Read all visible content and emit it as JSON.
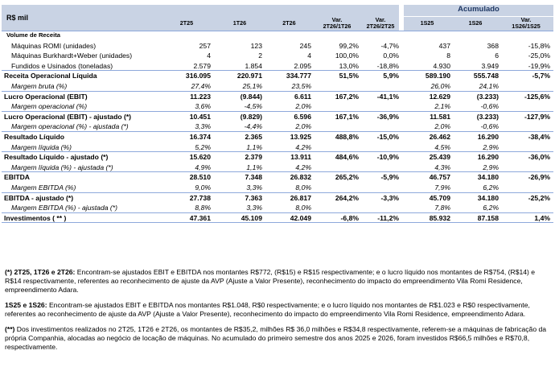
{
  "header": {
    "label": "R$ mil",
    "accumulated": "Acumulado",
    "cols": [
      "2T25",
      "1T26",
      "2T26",
      "Var.\n2T26/1T26",
      "Var.\n2T26/2T25",
      "1S25",
      "1S26",
      "Var.\n1S26/1S25"
    ]
  },
  "rows": [
    {
      "label": "Volume de Receita",
      "style": "head",
      "values": [
        "",
        "",
        "",
        "",
        "",
        "",
        "",
        ""
      ]
    },
    {
      "label": "Máquinas ROMI (unidades)",
      "style": "sub",
      "values": [
        "257",
        "123",
        "245",
        "99,2%",
        "-4,7%",
        "437",
        "368",
        "-15,8%"
      ]
    },
    {
      "label": "Máquinas Burkhardt+Weber (unidades)",
      "style": "sub",
      "values": [
        "4",
        "2",
        "4",
        "100,0%",
        "0,0%",
        "8",
        "6",
        "-25,0%"
      ]
    },
    {
      "label": "Fundidos e Usinados (toneladas)",
      "style": "sub sep",
      "values": [
        "2.579",
        "1.854",
        "2.095",
        "13,0%",
        "-18,8%",
        "4.930",
        "3.949",
        "-19,9%"
      ]
    },
    {
      "label": "Receita Operacional Líquida",
      "style": "bold",
      "values": [
        "316.095",
        "220.971",
        "334.777",
        "51,5%",
        "5,9%",
        "589.190",
        "555.748",
        "-5,7%"
      ]
    },
    {
      "label": "Margem bruta (%)",
      "style": "sub ital sep",
      "values": [
        "27,4%",
        "25,1%",
        "23,5%",
        "",
        "",
        "26,0%",
        "24,1%",
        ""
      ]
    },
    {
      "label": "Lucro Operacional (EBIT)",
      "style": "bold",
      "values": [
        "11.223",
        "(9.844)",
        "6.611",
        "167,2%",
        "-41,1%",
        "12.629",
        "(3.233)",
        "-125,6%"
      ]
    },
    {
      "label": "Margem operacional  (%)",
      "style": "sub ital sep",
      "values": [
        "3,6%",
        "-4,5%",
        "2,0%",
        "",
        "",
        "2,1%",
        "-0,6%",
        ""
      ]
    },
    {
      "label": "Lucro Operacional (EBIT) - ajustado (*)",
      "style": "bold",
      "values": [
        "10.451",
        "(9.829)",
        "6.596",
        "167,1%",
        "-36,9%",
        "11.581",
        "(3.233)",
        "-127,9%"
      ]
    },
    {
      "label": "Margem operacional  (%) - ajustada (*)",
      "style": "sub ital sep",
      "values": [
        "3,3%",
        "-4,4%",
        "2,0%",
        "",
        "",
        "2,0%",
        "-0,6%",
        ""
      ]
    },
    {
      "label": "Resultado Líquido",
      "style": "bold",
      "values": [
        "16.374",
        "2.365",
        "13.925",
        "488,8%",
        "-15,0%",
        "26.462",
        "16.290",
        "-38,4%"
      ]
    },
    {
      "label": "Margem líquida (%)",
      "style": "sub ital sep",
      "values": [
        "5,2%",
        "1,1%",
        "4,2%",
        "",
        "",
        "4,5%",
        "2,9%",
        ""
      ]
    },
    {
      "label": "Resultado Líquido - ajustado (*)",
      "style": "bold",
      "values": [
        "15.620",
        "2.379",
        "13.911",
        "484,6%",
        "-10,9%",
        "25.439",
        "16.290",
        "-36,0%"
      ]
    },
    {
      "label": "Margem líquida (%) - ajustada (*)",
      "style": "sub ital sep",
      "values": [
        "4,9%",
        "1,1%",
        "4,2%",
        "",
        "",
        "4,3%",
        "2,9%",
        ""
      ]
    },
    {
      "label": "EBITDA",
      "style": "bold",
      "values": [
        "28.510",
        "7.348",
        "26.832",
        "265,2%",
        "-5,9%",
        "46.757",
        "34.180",
        "-26,9%"
      ]
    },
    {
      "label": "Margem EBITDA (%)",
      "style": "sub ital sep",
      "values": [
        "9,0%",
        "3,3%",
        "8,0%",
        "",
        "",
        "7,9%",
        "6,2%",
        ""
      ]
    },
    {
      "label": "EBITDA - ajustado (*)",
      "style": "bold",
      "values": [
        "27.738",
        "7.363",
        "26.817",
        "264,2%",
        "-3,3%",
        "45.709",
        "34.180",
        "-25,2%"
      ]
    },
    {
      "label": "Margem EBITDA (%) - ajustada (*)",
      "style": "sub ital sep",
      "values": [
        "8,8%",
        "3,3%",
        "8,0%",
        "",
        "",
        "7,8%",
        "6,2%",
        ""
      ]
    },
    {
      "label": "Investimentos ( ** )",
      "style": "bold sep",
      "values": [
        "47.361",
        "45.109",
        "42.049",
        "-6,8%",
        "-11,2%",
        "85.932",
        "87.158",
        "1,4%"
      ]
    }
  ],
  "notes": [
    {
      "lead": "(*) 2T25, 1T26 e 2T26:",
      "text": " Encontram-se ajustados EBIT e EBITDA nos montantes R$772, (R$15) e R$15  respectivamente; e o lucro líquido nos montantes de R$754, (R$14) e R$14   respectivamente, referentes ao reconhecimento de ajuste da AVP (Ajuste a Valor Presente), reconhecimento do impacto do empreendimento Vila Romi Residence, empreendimento Adara."
    },
    {
      "lead": "1S25 e 1S26:",
      "text": " Encontram-se ajustados EBIT e EBITDA nos montantes R$1.048, R$0 respectivamente; e o lucro líquido nos montantes de R$1.023 e R$0 respectivamente, referentes ao reconhecimento de ajuste da AVP (Ajuste a Valor Presente), reconhecimento do impacto do empreendimento Vila Romi Residence, empreendimento Adara."
    },
    {
      "lead": "(**)",
      "text": " Dos investimentos realizados no 2T25, 1T26 e 2T26, os montantes de R$35,2, milhões R$ 36,0 milhões e R$34,8 respectivamente, referem-se a máquinas de fabricação da própria Companhia, alocadas ao negócio de locação de máquinas. No acumulado do primeiro semestre dos anos 2025 e 2026, foram investidos R$66,5 milhões e R$70,8, respectivamente."
    }
  ]
}
